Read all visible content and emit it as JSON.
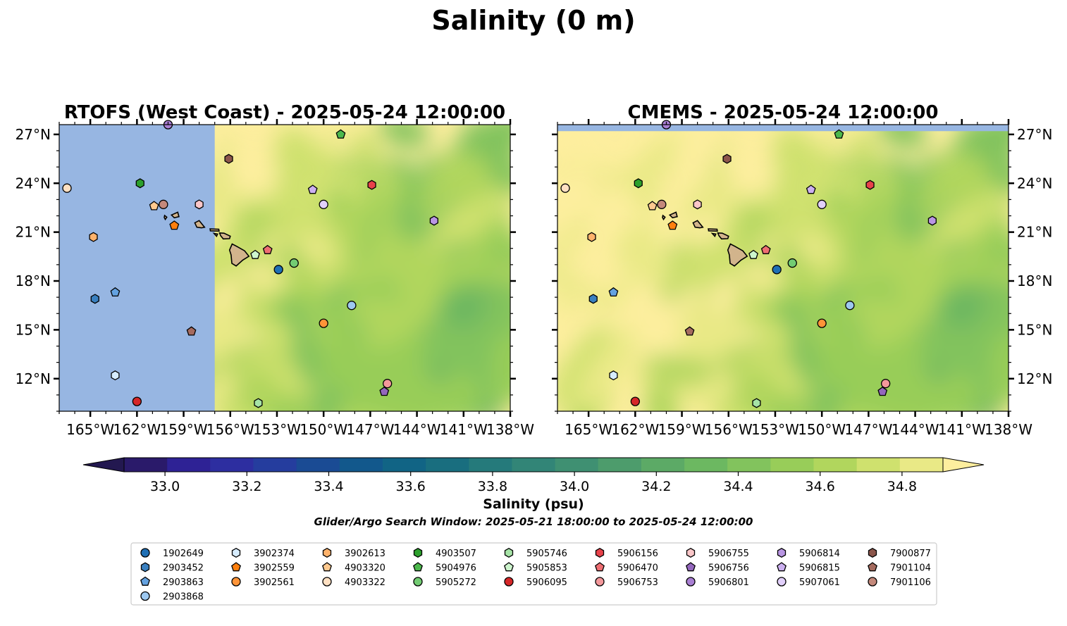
{
  "figure": {
    "title": "Salinity (0 m)",
    "colorbar_label": "Salinity (psu)",
    "caption": "Glider/Argo Search Window: 2025-05-21 18:00:00 to 2025-05-24 12:00:00"
  },
  "panels": [
    {
      "title": "RTOFS (West Coast) - 2025-05-24 12:00:00",
      "lat_labels_side": "left",
      "model_no_data_west_of_lon": -157.0
    },
    {
      "title": "CMEMS - 2025-05-24 12:00:00",
      "lat_labels_side": "right",
      "model_no_data_north_of_lat": 27.2
    }
  ],
  "map_extent": {
    "lon_min": -167,
    "lon_max": -138,
    "lat_min": 10,
    "lat_max": 27.6
  },
  "lon_ticks": [
    {
      "value": -165,
      "label": "165°W"
    },
    {
      "value": -162,
      "label": "162°W"
    },
    {
      "value": -159,
      "label": "159°W"
    },
    {
      "value": -156,
      "label": "156°W"
    },
    {
      "value": -153,
      "label": "153°W"
    },
    {
      "value": -150,
      "label": "150°W"
    },
    {
      "value": -147,
      "label": "147°W"
    },
    {
      "value": -144,
      "label": "144°W"
    },
    {
      "value": -141,
      "label": "141°W"
    },
    {
      "value": -138,
      "label": "138°W"
    }
  ],
  "lat_ticks": [
    {
      "value": 27,
      "label": "27°N"
    },
    {
      "value": 24,
      "label": "24°N"
    },
    {
      "value": 21,
      "label": "21°N"
    },
    {
      "value": 18,
      "label": "18°N"
    },
    {
      "value": 15,
      "label": "15°N"
    },
    {
      "value": 12,
      "label": "12°N"
    }
  ],
  "colorbar": {
    "min": 32.9,
    "max": 34.9,
    "step": 0.1,
    "extend": "both",
    "ticks": [
      {
        "value": 33.0,
        "label": "33.0"
      },
      {
        "value": 33.2,
        "label": "33.2"
      },
      {
        "value": 33.4,
        "label": "33.4"
      },
      {
        "value": 33.6,
        "label": "33.6"
      },
      {
        "value": 33.8,
        "label": "33.8"
      },
      {
        "value": 34.0,
        "label": "34.0"
      },
      {
        "value": 34.2,
        "label": "34.2"
      },
      {
        "value": 34.4,
        "label": "34.4"
      },
      {
        "value": 34.6,
        "label": "34.6"
      },
      {
        "value": 34.8,
        "label": "34.8"
      }
    ],
    "colors": [
      "#2a1a6a",
      "#2e2295",
      "#2d2ea0",
      "#253d9e",
      "#1a4b94",
      "#12588c",
      "#116485",
      "#196e7f",
      "#257a7b",
      "#328577",
      "#3f9072",
      "#4d9c6c",
      "#5caa66",
      "#6cb861",
      "#82c35d",
      "#98cd59",
      "#b1d65d",
      "#cfe16e",
      "#e9e986"
    ],
    "under_color": "#231850",
    "over_color": "#fdee9e"
  },
  "map_colors": {
    "nodata": "#97b6e2",
    "high_salinity": "#fdee9e",
    "land": "#d2b48c"
  },
  "stations": [
    {
      "id": "1902649",
      "marker": "circle",
      "color": "#1f6fb4",
      "lon": -152.9,
      "lat": 18.7
    },
    {
      "id": "2903452",
      "marker": "hexagon",
      "color": "#3a80c0",
      "lon": -164.7,
      "lat": 16.9
    },
    {
      "id": "2903863",
      "marker": "pentagon",
      "color": "#64a2e0",
      "lon": -163.4,
      "lat": 17.3
    },
    {
      "id": "2903868",
      "marker": "circle",
      "color": "#9dc8f0",
      "lon": -148.2,
      "lat": 16.5
    },
    {
      "id": "3902374",
      "marker": "hexagon",
      "color": "#d6ecff",
      "lon": -163.4,
      "lat": 12.2
    },
    {
      "id": "3902559",
      "marker": "pentagon",
      "color": "#ff7f0e",
      "lon": -159.6,
      "lat": 21.4
    },
    {
      "id": "3902561",
      "marker": "circle",
      "color": "#ff9438",
      "lon": -150.0,
      "lat": 15.4
    },
    {
      "id": "3902613",
      "marker": "hexagon",
      "color": "#ffb26b",
      "lon": -164.8,
      "lat": 20.7
    },
    {
      "id": "4903320",
      "marker": "pentagon",
      "color": "#ffc98f",
      "lon": -160.9,
      "lat": 22.6
    },
    {
      "id": "4903322",
      "marker": "circle",
      "color": "#ffe0c2",
      "lon": -166.5,
      "lat": 23.7
    },
    {
      "id": "4903507",
      "marker": "hexagon",
      "color": "#2ca02c",
      "lon": -161.8,
      "lat": 24.0
    },
    {
      "id": "5904976",
      "marker": "pentagon",
      "color": "#4cb84c",
      "lon": -148.9,
      "lat": 27.0
    },
    {
      "id": "5905272",
      "marker": "circle",
      "color": "#73cc73",
      "lon": -151.9,
      "lat": 19.1
    },
    {
      "id": "5905746",
      "marker": "hexagon",
      "color": "#a6e3a6",
      "lon": -154.2,
      "lat": 10.5
    },
    {
      "id": "5905853",
      "marker": "pentagon",
      "color": "#cdf5cd",
      "lon": -154.4,
      "lat": 19.6
    },
    {
      "id": "5906095",
      "marker": "circle",
      "color": "#d62728",
      "lon": -162.0,
      "lat": 10.6
    },
    {
      "id": "5906156",
      "marker": "hexagon",
      "color": "#e8424a",
      "lon": -146.9,
      "lat": 23.9
    },
    {
      "id": "5906470",
      "marker": "pentagon",
      "color": "#ee6e72",
      "lon": -153.6,
      "lat": 19.9
    },
    {
      "id": "5906753",
      "marker": "circle",
      "color": "#f3989b",
      "lon": -145.9,
      "lat": 11.7
    },
    {
      "id": "5906755",
      "marker": "hexagon",
      "color": "#fbc7c9",
      "lon": -158.0,
      "lat": 22.7
    },
    {
      "id": "5906756",
      "marker": "pentagon",
      "color": "#9467bd",
      "lon": -146.1,
      "lat": 11.2
    },
    {
      "id": "5906801",
      "marker": "circle",
      "color": "#a97fd3",
      "lon": -160.0,
      "lat": 27.6
    },
    {
      "id": "5906814",
      "marker": "hexagon",
      "color": "#b996e3",
      "lon": -142.9,
      "lat": 21.7
    },
    {
      "id": "5906815",
      "marker": "pentagon",
      "color": "#ccb0f0",
      "lon": -150.7,
      "lat": 23.6
    },
    {
      "id": "5907061",
      "marker": "circle",
      "color": "#e2d0fb",
      "lon": -150.0,
      "lat": 22.7
    },
    {
      "id": "7900877",
      "marker": "hexagon",
      "color": "#8c564b",
      "lon": -156.1,
      "lat": 25.5
    },
    {
      "id": "7901104",
      "marker": "pentagon",
      "color": "#a56b5f",
      "lon": -158.5,
      "lat": 14.9
    },
    {
      "id": "7901106",
      "marker": "circle",
      "color": "#c4897b",
      "lon": -160.3,
      "lat": 22.7
    }
  ]
}
